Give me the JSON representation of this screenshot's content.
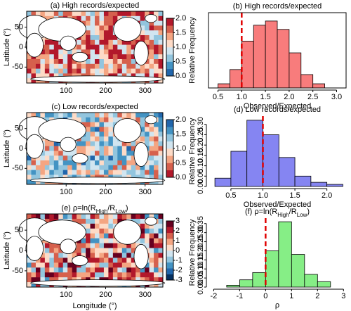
{
  "chart_data": [
    {
      "type": "map",
      "title": [
        "(a) High records/expected"
      ],
      "ylabel": "Latitude (°)",
      "xlim": [
        0,
        345
      ],
      "ylim": [
        -90,
        90
      ],
      "xticks": [
        100,
        200,
        300
      ],
      "yticks": [
        50,
        0,
        -50
      ],
      "colorbar": {
        "lim": [
          0,
          2
        ],
        "ticks": [
          {
            "value": 0,
            "label": "0.0"
          },
          0.5,
          {
            "value": 1,
            "label": "1.0"
          },
          1.5,
          {
            "value": 2,
            "label": "2.0"
          }
        ],
        "colors": [
          "#2166ac",
          "#4393c3",
          "#92c5de",
          "#d1e5f0",
          "#fddbc7",
          "#f4a582",
          "#d6604d",
          "#b2182b"
        ]
      }
    },
    {
      "type": "histogram",
      "title": [
        "(b) High records/expected"
      ],
      "xlabel": "Observed/Expected",
      "ylabel": "Relative Frequency",
      "bins": [
        0.5,
        0.75,
        1,
        1.25,
        1.5,
        1.75,
        2,
        2.25,
        2.5,
        2.75
      ],
      "values": [
        0.05,
        0.22,
        0.56,
        0.75,
        0.8,
        0.7,
        0.42,
        0.16,
        0.05
      ],
      "color": "#f87c7c",
      "xlim": [
        0.3,
        3.2
      ],
      "ylim": [
        0,
        0.9
      ],
      "xticks": [
        0.5,
        {
          "value": 1,
          "label": "1.0"
        },
        1.5,
        {
          "value": 2,
          "label": "2.0"
        },
        2.5,
        {
          "value": 3,
          "label": "3.0"
        }
      ],
      "vline": {
        "x": 1,
        "color": "#e00000"
      },
      "box": true
    },
    {
      "type": "map",
      "title": [
        "(c) Low records/expected"
      ],
      "ylabel": "Latitude (°)",
      "xlim": [
        0,
        345
      ],
      "ylim": [
        -90,
        90
      ],
      "xticks": [
        100,
        200,
        300
      ],
      "yticks": [
        50,
        0,
        -50
      ],
      "colorbar": {
        "lim": [
          0,
          2
        ],
        "ticks": [
          {
            "value": 0,
            "label": "0.0"
          },
          0.5,
          {
            "value": 1,
            "label": "1.0"
          },
          1.5,
          {
            "value": 2,
            "label": "2.0"
          }
        ],
        "colors": [
          "#b2182b",
          "#d6604d",
          "#f4a582",
          "#fddbc7",
          "#d1e5f0",
          "#92c5de",
          "#4393c3",
          "#2166ac"
        ]
      }
    },
    {
      "type": "histogram",
      "title": [
        "(d) Low records/expected"
      ],
      "xlabel": "Observed/Expected",
      "ylabel": "Relative Frequency",
      "bins": [
        0.25,
        0.5,
        0.75,
        1,
        1.25,
        1.5,
        1.75,
        2,
        2.25
      ],
      "values": [
        0.04,
        0.17,
        0.32,
        0.25,
        0.14,
        0.05,
        0.02,
        0.01
      ],
      "color": "#8585f2",
      "xlim": [
        0.15,
        2.3
      ],
      "ylim": [
        0,
        0.34
      ],
      "xticks": [
        0.5,
        {
          "value": 1,
          "label": "1.0"
        },
        1.5,
        {
          "value": 2,
          "label": "2.0"
        }
      ],
      "yticks": [
        {
          "value": 0,
          "label": "0.00"
        },
        0.05,
        {
          "value": 0.1,
          "label": "0.10"
        },
        0.15,
        {
          "value": 0.2,
          "label": "0.20"
        },
        0.25,
        {
          "value": 0.3,
          "label": "0.30"
        }
      ],
      "vline": {
        "x": 1,
        "color": "#e00000"
      },
      "box": false
    },
    {
      "type": "map",
      "title": [
        "(e) ρ=ln(R",
        "High",
        "/R",
        "Low",
        ")"
      ],
      "ylabel": "Latitude (°)",
      "xlabel": "Longitude (°)",
      "xlim": [
        0,
        345
      ],
      "ylim": [
        -90,
        90
      ],
      "xticks": [
        100,
        200,
        300
      ],
      "yticks": [
        50,
        0,
        -50
      ],
      "colorbar": {
        "lim": [
          -3,
          3
        ],
        "ticks": [
          -3,
          -2,
          -1,
          0,
          1,
          2,
          3
        ],
        "colors": [
          "#053061",
          "#2166ac",
          "#4393c3",
          "#92c5de",
          "#d1e5f0",
          "#fddbc7",
          "#f4a582",
          "#d6604d",
          "#b2182b",
          "#67001f"
        ]
      }
    },
    {
      "type": "histogram",
      "title": [
        "(f) ρ=ln(R",
        "High",
        "/R",
        "Low",
        ")"
      ],
      "xlabel": "ρ",
      "ylabel": "Relative Frequency",
      "bins": [
        -1.5,
        -1,
        -0.5,
        0,
        0.5,
        1,
        1.5,
        2,
        2.5
      ],
      "values": [
        0.01,
        0.04,
        0.08,
        0.2,
        0.36,
        0.18,
        0.07,
        0.03
      ],
      "color": "#86ee86",
      "xlim": [
        -2.2,
        3.1
      ],
      "ylim": [
        0,
        0.38
      ],
      "xticks": [
        -2,
        -1,
        0,
        1,
        2,
        3
      ],
      "yticks": [
        {
          "value": 0,
          "label": "0.00"
        },
        0.05,
        {
          "value": 0.1,
          "label": "0.10"
        },
        0.15,
        {
          "value": 0.2,
          "label": "0.20"
        },
        0.25,
        {
          "value": 0.3,
          "label": "0.30"
        },
        0.35
      ],
      "vline": {
        "x": 0,
        "color": "#e00000"
      },
      "box": false
    }
  ]
}
